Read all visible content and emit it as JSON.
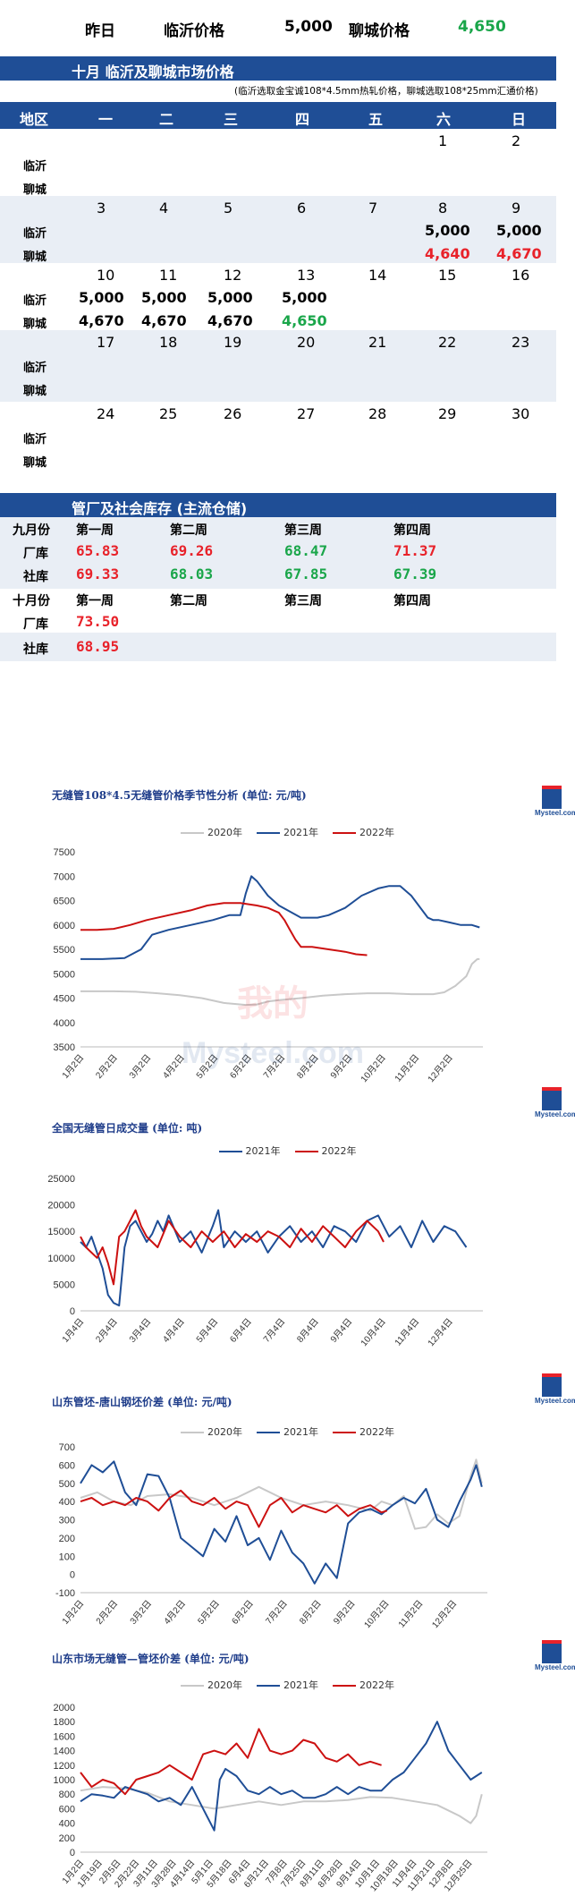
{
  "top": {
    "yesterday_label": "昨日",
    "linyi_label": "临沂价格",
    "linyi_value": "5,000",
    "liaocheng_label": "聊城价格",
    "liaocheng_value": "4,650"
  },
  "calendar": {
    "title": "十月  临沂及聊城市场价格",
    "note": "(临沂选取金宝诚108*4.5mm热轧价格，聊城选取108*25mm汇通价格)",
    "headers": [
      "地区",
      "一",
      "二",
      "三",
      "四",
      "五",
      "六",
      "日"
    ],
    "city_linyi": "临沂",
    "city_liaocheng": "聊城",
    "weeks": [
      {
        "days": [
          "",
          "",
          "",
          "",
          "",
          "1",
          "2"
        ],
        "linyi": [
          "",
          "",
          "",
          "",
          "",
          "",
          ""
        ],
        "liaocheng": [
          "",
          "",
          "",
          "",
          "",
          "",
          ""
        ]
      },
      {
        "days": [
          "3",
          "4",
          "5",
          "6",
          "7",
          "8",
          "9"
        ],
        "linyi": [
          "",
          "",
          "",
          "",
          "",
          "5,000",
          "5,000"
        ],
        "liaocheng": [
          "",
          "",
          "",
          "",
          "",
          "4,640",
          "4,670"
        ]
      },
      {
        "days": [
          "10",
          "11",
          "12",
          "13",
          "14",
          "15",
          "16"
        ],
        "linyi": [
          "5,000",
          "5,000",
          "5,000",
          "5,000",
          "",
          "",
          ""
        ],
        "liaocheng": [
          "4,670",
          "4,670",
          "4,670",
          "4,650",
          "",
          "",
          ""
        ]
      },
      {
        "days": [
          "17",
          "18",
          "19",
          "20",
          "21",
          "22",
          "23"
        ],
        "linyi": [
          "",
          "",
          "",
          "",
          "",
          "",
          ""
        ],
        "liaocheng": [
          "",
          "",
          "",
          "",
          "",
          "",
          ""
        ]
      },
      {
        "days": [
          "24",
          "25",
          "26",
          "27",
          "28",
          "29",
          "30"
        ],
        "linyi": [
          "",
          "",
          "",
          "",
          "",
          "",
          ""
        ],
        "liaocheng": [
          "",
          "",
          "",
          "",
          "",
          "",
          ""
        ]
      }
    ],
    "liaocheng_colors": [
      [
        "",
        "",
        "",
        "",
        "",
        "",
        ""
      ],
      [
        "",
        "",
        "",
        "",
        "",
        "#e8222a",
        "#e8222a"
      ],
      [
        "#000000",
        "#000000",
        "#000000",
        "#1aa64a",
        "",
        "",
        ""
      ],
      [
        "",
        "",
        "",
        "",
        "",
        "",
        ""
      ],
      [
        "",
        "",
        "",
        "",
        "",
        "",
        ""
      ]
    ]
  },
  "inventory": {
    "title": "管厂及社会库存 (主流仓储)",
    "sep_label": "九月份",
    "oct_label": "十月份",
    "weeks": [
      "第一周",
      "第二周",
      "第三周",
      "第四周"
    ],
    "factory_label": "厂库",
    "social_label": "社库",
    "sep_factory": [
      "65.83",
      "69.26",
      "68.47",
      "71.37"
    ],
    "sep_factory_colors": [
      "#e8222a",
      "#e8222a",
      "#1aa64a",
      "#e8222a"
    ],
    "sep_social": [
      "69.33",
      "68.03",
      "67.85",
      "67.39"
    ],
    "sep_social_colors": [
      "#e8222a",
      "#1aa64a",
      "#1aa64a",
      "#1aa64a"
    ],
    "oct_factory": [
      "73.50"
    ],
    "oct_social": [
      "68.95"
    ]
  },
  "watermark": {
    "cn": "我的",
    "en": "Mysteel.com"
  },
  "logo_text": "Mysteel.com",
  "chart_data": [
    {
      "type": "line",
      "title": "无缝管108*4.5无缝管价格季节性分析 (单位: 元/吨)",
      "ylim": [
        3500,
        7500
      ],
      "yticks": [
        3500,
        4000,
        4500,
        5000,
        5500,
        6000,
        6500,
        7000,
        7500
      ],
      "xticks": [
        "1月2日",
        "2月2日",
        "3月2日",
        "4月2日",
        "5月2日",
        "6月2日",
        "7月2日",
        "8月2日",
        "9月2日",
        "10月2日",
        "11月2日",
        "12月2日"
      ],
      "series": [
        {
          "name": "2020年",
          "color": "#c8c8c8",
          "x": [
            0,
            10,
            30,
            50,
            70,
            90,
            110,
            130,
            150,
            160,
            170,
            180,
            200,
            220,
            240,
            260,
            280,
            300,
            320,
            330,
            340,
            350,
            355,
            360,
            362
          ],
          "y": [
            4640,
            4640,
            4640,
            4630,
            4600,
            4560,
            4500,
            4400,
            4360,
            4370,
            4430,
            4460,
            4500,
            4550,
            4580,
            4600,
            4600,
            4580,
            4580,
            4620,
            4750,
            4950,
            5200,
            5300,
            5300
          ]
        },
        {
          "name": "2021年",
          "color": "#1f4e96",
          "x": [
            0,
            20,
            40,
            55,
            65,
            80,
            100,
            120,
            135,
            145,
            150,
            155,
            160,
            170,
            180,
            200,
            215,
            225,
            240,
            255,
            270,
            280,
            290,
            300,
            315,
            320,
            325,
            335,
            345,
            355,
            362
          ],
          "y": [
            5300,
            5300,
            5320,
            5500,
            5800,
            5900,
            6000,
            6100,
            6200,
            6200,
            6650,
            7000,
            6900,
            6600,
            6400,
            6150,
            6150,
            6200,
            6350,
            6600,
            6750,
            6800,
            6800,
            6600,
            6150,
            6100,
            6100,
            6050,
            6000,
            6000,
            5950
          ]
        },
        {
          "name": "2022年",
          "color": "#cc1111",
          "x": [
            0,
            15,
            30,
            45,
            60,
            80,
            100,
            115,
            130,
            145,
            160,
            170,
            180,
            185,
            190,
            195,
            200,
            210,
            225,
            240,
            250,
            260
          ],
          "y": [
            5900,
            5900,
            5920,
            6000,
            6100,
            6200,
            6300,
            6400,
            6450,
            6450,
            6400,
            6350,
            6250,
            6100,
            5900,
            5700,
            5550,
            5550,
            5500,
            5450,
            5400,
            5380
          ]
        }
      ]
    },
    {
      "type": "line",
      "title": "全国无缝管日成交量 (单位: 吨)",
      "ylim": [
        0,
        25000
      ],
      "yticks": [
        0,
        5000,
        10000,
        15000,
        20000,
        25000
      ],
      "xticks": [
        "1月4日",
        "2月4日",
        "3月4日",
        "4月4日",
        "5月4日",
        "6月4日",
        "7月4日",
        "8月4日",
        "9月4日",
        "10月4日",
        "11月4日",
        "12月4日"
      ],
      "series": [
        {
          "name": "2021年",
          "color": "#1f4e96",
          "x": [
            0,
            5,
            10,
            15,
            20,
            25,
            30,
            35,
            40,
            45,
            50,
            55,
            60,
            65,
            70,
            75,
            80,
            90,
            100,
            110,
            120,
            125,
            130,
            140,
            150,
            160,
            170,
            180,
            190,
            200,
            210,
            220,
            230,
            240,
            250,
            260,
            270,
            280,
            290,
            300,
            310,
            320,
            330,
            340,
            350
          ],
          "y": [
            13000,
            12000,
            14000,
            11000,
            8000,
            3000,
            1500,
            1000,
            12000,
            16000,
            17000,
            15000,
            13000,
            14500,
            17000,
            15000,
            18000,
            13000,
            15000,
            11000,
            16000,
            19000,
            12000,
            15000,
            13000,
            15000,
            11000,
            14000,
            16000,
            13000,
            15000,
            12000,
            16000,
            15000,
            13000,
            17000,
            18000,
            14000,
            16000,
            12000,
            17000,
            13000,
            16000,
            15000,
            12000
          ]
        },
        {
          "name": "2022年",
          "color": "#cc1111",
          "x": [
            0,
            5,
            10,
            15,
            20,
            25,
            30,
            35,
            40,
            45,
            50,
            55,
            60,
            70,
            80,
            90,
            100,
            110,
            120,
            130,
            140,
            150,
            160,
            170,
            180,
            190,
            200,
            210,
            220,
            230,
            240,
            250,
            260,
            270,
            275
          ],
          "y": [
            14000,
            12000,
            11000,
            10000,
            12000,
            9000,
            5000,
            14000,
            15000,
            17000,
            19000,
            16000,
            14000,
            12000,
            17000,
            14000,
            12000,
            15000,
            13000,
            15000,
            12000,
            14500,
            13000,
            15000,
            14000,
            12000,
            15500,
            13000,
            16000,
            14000,
            12000,
            15000,
            17000,
            15000,
            13000
          ]
        }
      ]
    },
    {
      "type": "line",
      "title": "山东管坯-唐山钢坯价差 (单位: 元/吨)",
      "ylim": [
        -100,
        700
      ],
      "yticks": [
        -100,
        0,
        100,
        200,
        300,
        400,
        500,
        600,
        700
      ],
      "xticks": [
        "1月2日",
        "2月2日",
        "3月2日",
        "4月2日",
        "5月2日",
        "6月2日",
        "7月2日",
        "8月2日",
        "9月2日",
        "10月2日",
        "11月2日",
        "12月2日"
      ],
      "series": [
        {
          "name": "2020年",
          "color": "#c8c8c8",
          "x": [
            0,
            15,
            30,
            45,
            60,
            80,
            100,
            120,
            140,
            160,
            180,
            200,
            220,
            240,
            260,
            270,
            280,
            290,
            300,
            310,
            320,
            330,
            340,
            350,
            355,
            360
          ],
          "y": [
            420,
            450,
            400,
            380,
            430,
            440,
            420,
            380,
            420,
            480,
            420,
            380,
            400,
            380,
            350,
            400,
            380,
            430,
            250,
            260,
            330,
            280,
            320,
            540,
            630,
            500
          ]
        },
        {
          "name": "2021年",
          "color": "#1f4e96",
          "x": [
            0,
            10,
            20,
            30,
            40,
            50,
            60,
            70,
            80,
            90,
            100,
            110,
            120,
            130,
            140,
            150,
            160,
            170,
            180,
            190,
            200,
            210,
            220,
            230,
            240,
            250,
            260,
            270,
            280,
            290,
            300,
            310,
            320,
            330,
            340,
            350,
            355,
            360
          ],
          "y": [
            500,
            600,
            560,
            620,
            450,
            380,
            550,
            540,
            420,
            200,
            150,
            100,
            250,
            180,
            320,
            160,
            200,
            80,
            240,
            120,
            60,
            -50,
            60,
            -20,
            280,
            340,
            360,
            330,
            380,
            420,
            390,
            470,
            300,
            260,
            400,
            520,
            600,
            480
          ]
        },
        {
          "name": "2022年",
          "color": "#cc1111",
          "x": [
            0,
            10,
            20,
            30,
            40,
            50,
            60,
            70,
            80,
            90,
            100,
            110,
            120,
            130,
            140,
            150,
            160,
            170,
            180,
            190,
            200,
            210,
            220,
            230,
            240,
            250,
            260,
            270,
            275
          ],
          "y": [
            400,
            420,
            380,
            400,
            380,
            420,
            400,
            350,
            420,
            460,
            400,
            380,
            420,
            360,
            400,
            380,
            260,
            380,
            420,
            340,
            380,
            360,
            340,
            380,
            320,
            360,
            380,
            340,
            350
          ]
        }
      ]
    },
    {
      "type": "line",
      "title": "山东市场无缝管—管坯价差 (单位: 元/吨)",
      "ylim": [
        0,
        2000
      ],
      "yticks": [
        0,
        200,
        400,
        600,
        800,
        1000,
        1200,
        1400,
        1600,
        1800,
        2000
      ],
      "xticks": [
        "1月2日",
        "1月19日",
        "2月5日",
        "2月22日",
        "3月11日",
        "3月28日",
        "4月14日",
        "5月1日",
        "5月18日",
        "6月4日",
        "6月21日",
        "7月8日",
        "7月25日",
        "8月11日",
        "8月28日",
        "9月14日",
        "10月1日",
        "10月18日",
        "11月4日",
        "11月21日",
        "12月8日",
        "12月25日"
      ],
      "series": [
        {
          "name": "2020年",
          "color": "#c8c8c8",
          "x": [
            0,
            20,
            40,
            60,
            80,
            100,
            120,
            140,
            160,
            180,
            200,
            220,
            240,
            260,
            280,
            300,
            320,
            340,
            350,
            355,
            360
          ],
          "y": [
            850,
            900,
            880,
            820,
            700,
            650,
            600,
            650,
            700,
            650,
            700,
            700,
            720,
            760,
            750,
            700,
            650,
            500,
            400,
            500,
            800
          ]
        },
        {
          "name": "2021年",
          "color": "#1f4e96",
          "x": [
            0,
            10,
            20,
            30,
            40,
            50,
            60,
            70,
            80,
            90,
            100,
            110,
            120,
            125,
            130,
            140,
            150,
            160,
            170,
            180,
            190,
            200,
            210,
            220,
            230,
            240,
            250,
            260,
            270,
            280,
            290,
            300,
            310,
            320,
            330,
            340,
            350,
            360
          ],
          "y": [
            700,
            800,
            780,
            750,
            900,
            850,
            800,
            700,
            750,
            650,
            900,
            600,
            300,
            1000,
            1150,
            1050,
            850,
            800,
            900,
            800,
            850,
            750,
            750,
            800,
            900,
            800,
            900,
            850,
            850,
            1000,
            1100,
            1300,
            1500,
            1800,
            1400,
            1200,
            1000,
            1100
          ]
        },
        {
          "name": "2022年",
          "color": "#cc1111",
          "x": [
            0,
            10,
            20,
            30,
            40,
            50,
            60,
            70,
            80,
            90,
            100,
            110,
            120,
            130,
            140,
            150,
            160,
            170,
            180,
            190,
            200,
            210,
            220,
            230,
            240,
            250,
            260,
            270
          ],
          "y": [
            1100,
            900,
            1000,
            950,
            800,
            1000,
            1050,
            1100,
            1200,
            1100,
            1000,
            1350,
            1400,
            1350,
            1500,
            1300,
            1700,
            1400,
            1350,
            1400,
            1550,
            1500,
            1300,
            1250,
            1350,
            1200,
            1250,
            1200
          ]
        }
      ]
    }
  ]
}
